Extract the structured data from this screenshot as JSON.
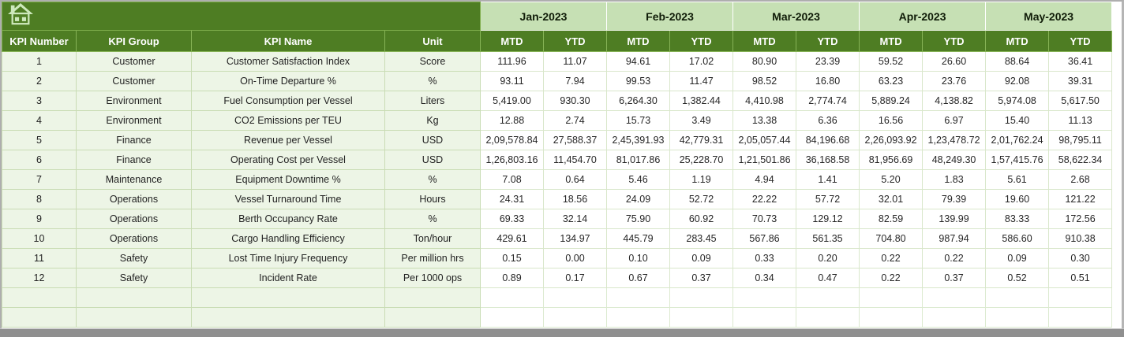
{
  "window": {
    "type": "spreadsheet-kpi-dashboard"
  },
  "colors": {
    "header_dark_green": "#4e7d23",
    "month_light_green": "#c6e0b4",
    "row_pale_green": "#edf5e6",
    "grid_line": "#d9e7cb",
    "bottom_bar_gray": "#8f8f8f",
    "header_text": "#ffffff",
    "data_text": "#262626"
  },
  "icons": {
    "corner": "home-icon"
  },
  "table": {
    "left_headers": [
      "KPI Number",
      "KPI Group",
      "KPI Name",
      "Unit"
    ],
    "months": [
      "Jan-2023",
      "Feb-2023",
      "Mar-2023",
      "Apr-2023",
      "May-2023"
    ],
    "sub_headers": [
      "MTD",
      "YTD"
    ],
    "rows": [
      {
        "number": "1",
        "group": "Customer",
        "name": "Customer Satisfaction Index",
        "unit": "Score",
        "values": [
          "111.96",
          "11.07",
          "94.61",
          "17.02",
          "80.90",
          "23.39",
          "59.52",
          "26.60",
          "88.64",
          "36.41"
        ]
      },
      {
        "number": "2",
        "group": "Customer",
        "name": "On-Time Departure %",
        "unit": "%",
        "values": [
          "93.11",
          "7.94",
          "99.53",
          "11.47",
          "98.52",
          "16.80",
          "63.23",
          "23.76",
          "92.08",
          "39.31"
        ]
      },
      {
        "number": "3",
        "group": "Environment",
        "name": "Fuel Consumption per Vessel",
        "unit": "Liters",
        "values": [
          "5,419.00",
          "930.30",
          "6,264.30",
          "1,382.44",
          "4,410.98",
          "2,774.74",
          "5,889.24",
          "4,138.82",
          "5,974.08",
          "5,617.50"
        ]
      },
      {
        "number": "4",
        "group": "Environment",
        "name": "CO2 Emissions per TEU",
        "unit": "Kg",
        "values": [
          "12.88",
          "2.74",
          "15.73",
          "3.49",
          "13.38",
          "6.36",
          "16.56",
          "6.97",
          "15.40",
          "11.13"
        ]
      },
      {
        "number": "5",
        "group": "Finance",
        "name": "Revenue per Vessel",
        "unit": "USD",
        "values": [
          "2,09,578.84",
          "27,588.37",
          "2,45,391.93",
          "42,779.31",
          "2,05,057.44",
          "84,196.68",
          "2,26,093.92",
          "1,23,478.72",
          "2,01,762.24",
          "98,795.11"
        ]
      },
      {
        "number": "6",
        "group": "Finance",
        "name": "Operating Cost per Vessel",
        "unit": "USD",
        "values": [
          "1,26,803.16",
          "11,454.70",
          "81,017.86",
          "25,228.70",
          "1,21,501.86",
          "36,168.58",
          "81,956.69",
          "48,249.30",
          "1,57,415.76",
          "58,622.34"
        ]
      },
      {
        "number": "7",
        "group": "Maintenance",
        "name": "Equipment Downtime %",
        "unit": "%",
        "values": [
          "7.08",
          "0.64",
          "5.46",
          "1.19",
          "4.94",
          "1.41",
          "5.20",
          "1.83",
          "5.61",
          "2.68"
        ]
      },
      {
        "number": "8",
        "group": "Operations",
        "name": "Vessel Turnaround Time",
        "unit": "Hours",
        "values": [
          "24.31",
          "18.56",
          "24.09",
          "52.72",
          "22.22",
          "57.72",
          "32.01",
          "79.39",
          "19.60",
          "121.22"
        ]
      },
      {
        "number": "9",
        "group": "Operations",
        "name": "Berth Occupancy Rate",
        "unit": "%",
        "values": [
          "69.33",
          "32.14",
          "75.90",
          "60.92",
          "70.73",
          "129.12",
          "82.59",
          "139.99",
          "83.33",
          "172.56"
        ]
      },
      {
        "number": "10",
        "group": "Operations",
        "name": "Cargo Handling Efficiency",
        "unit": "Ton/hour",
        "values": [
          "429.61",
          "134.97",
          "445.79",
          "283.45",
          "567.86",
          "561.35",
          "704.80",
          "987.94",
          "586.60",
          "910.38"
        ]
      },
      {
        "number": "11",
        "group": "Safety",
        "name": "Lost Time Injury Frequency",
        "unit": "Per million hrs",
        "values": [
          "0.15",
          "0.00",
          "0.10",
          "0.09",
          "0.33",
          "0.20",
          "0.22",
          "0.22",
          "0.09",
          "0.30"
        ]
      },
      {
        "number": "12",
        "group": "Safety",
        "name": "Incident Rate",
        "unit": "Per 1000 ops",
        "values": [
          "0.89",
          "0.17",
          "0.67",
          "0.37",
          "0.34",
          "0.47",
          "0.22",
          "0.37",
          "0.52",
          "0.51"
        ]
      }
    ],
    "empty_row_count": 2
  }
}
